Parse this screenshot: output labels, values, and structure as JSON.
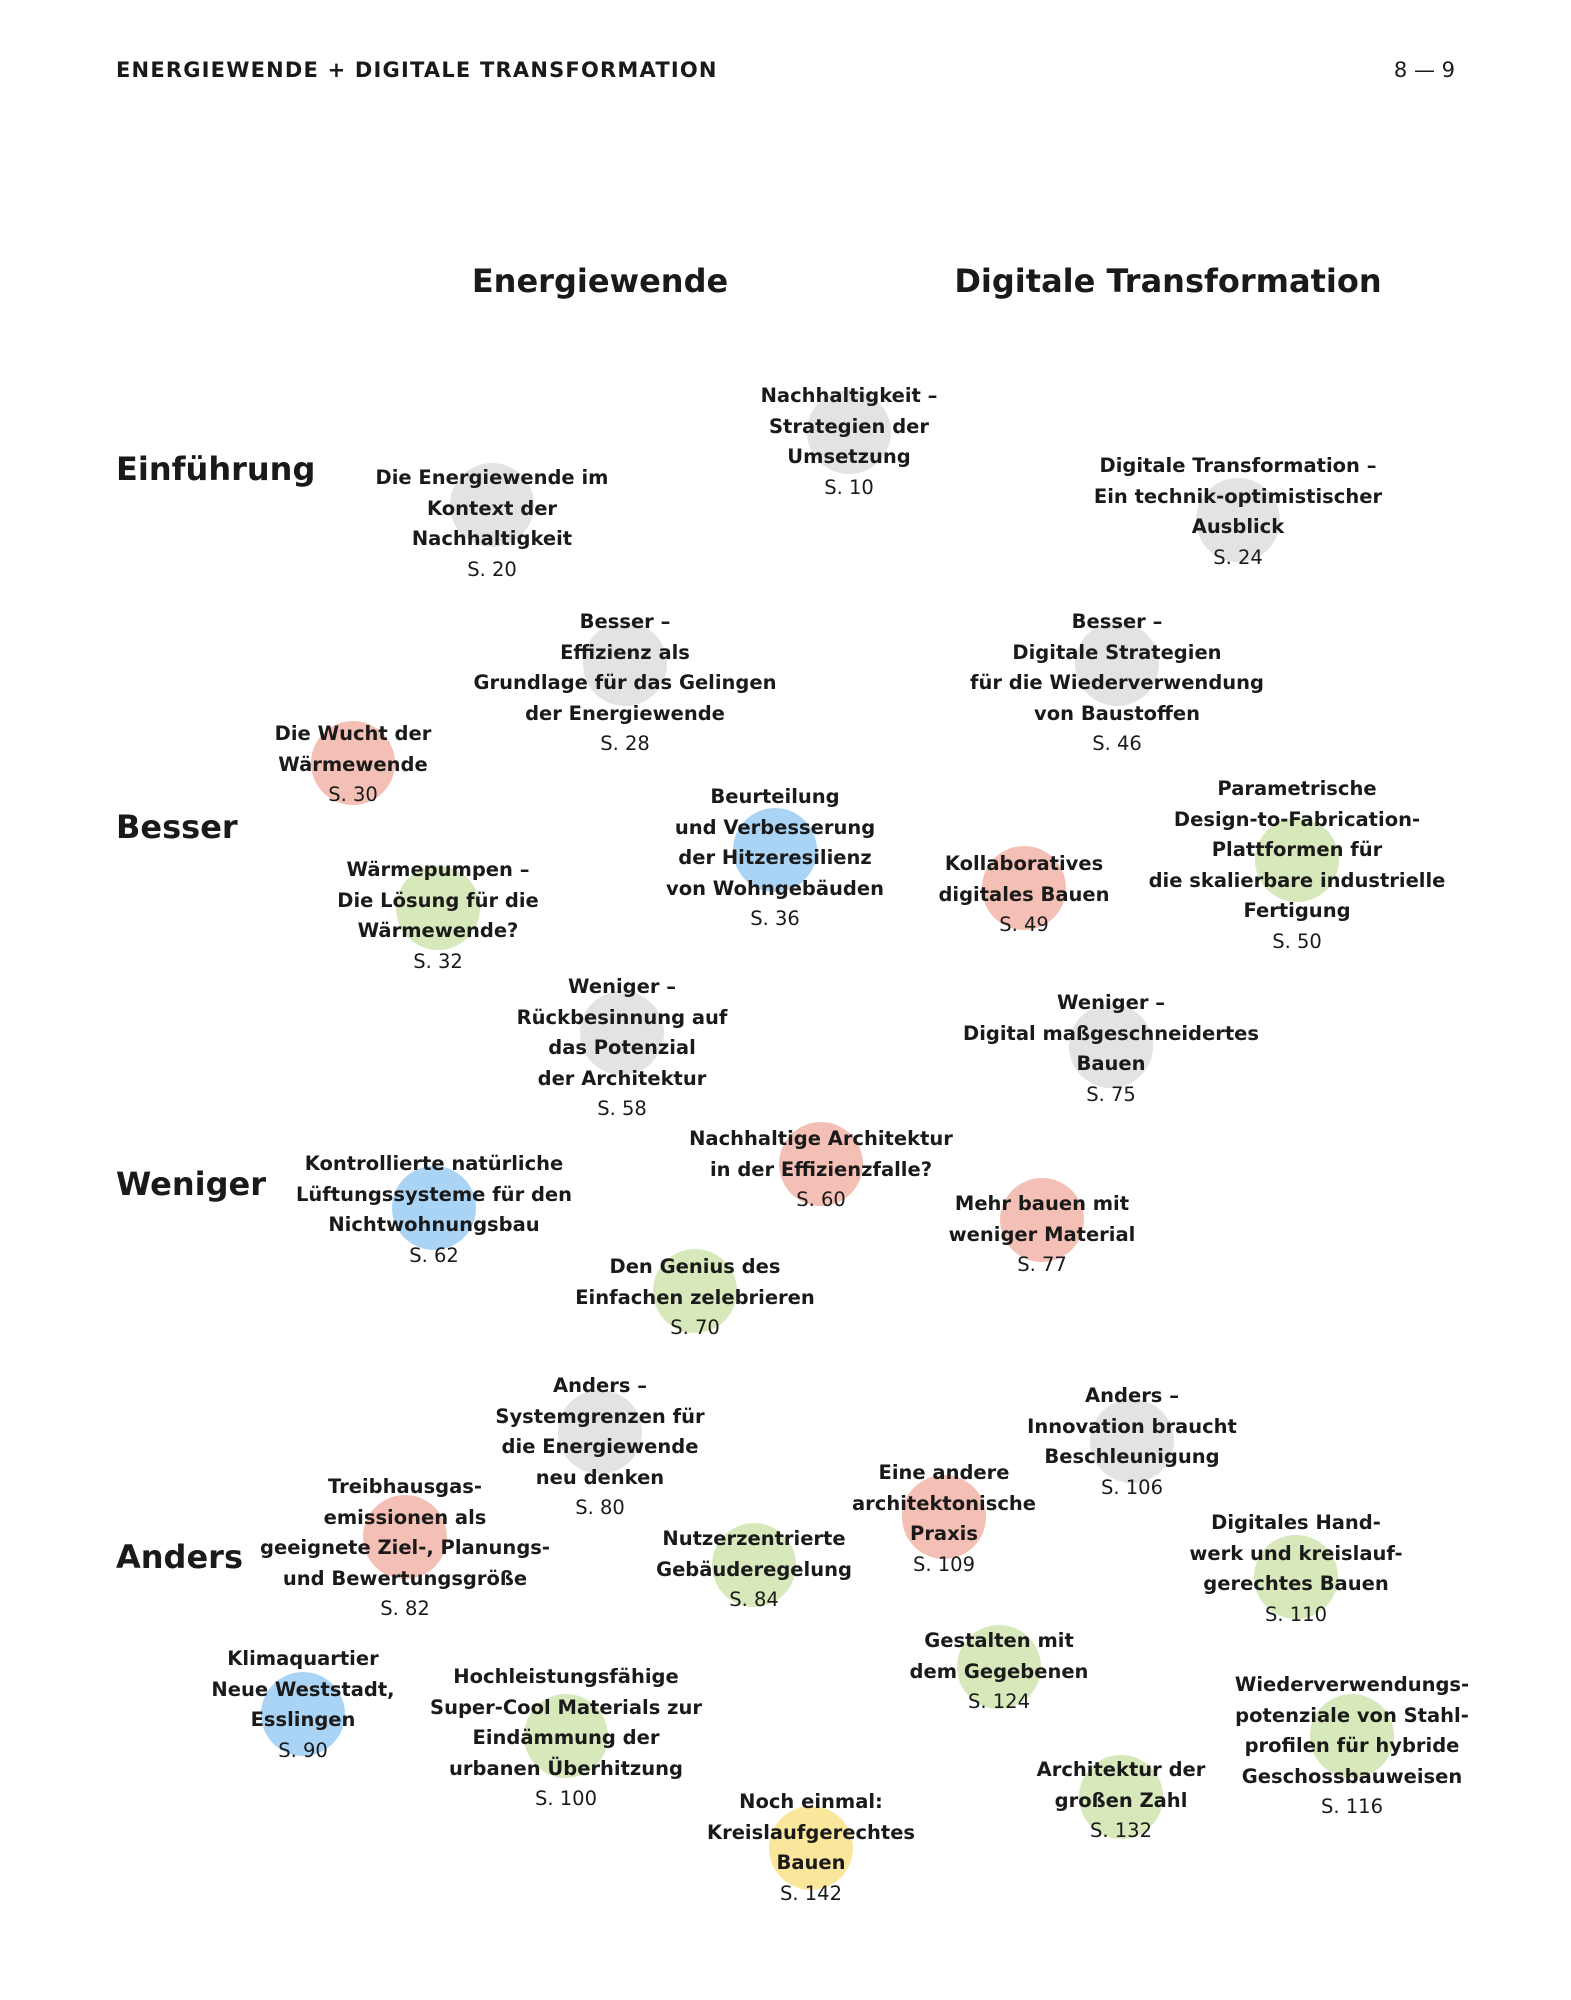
{
  "header": {
    "title": "ENERGIEWENDE + DIGITALE TRANSFORMATION",
    "page": "8 — 9"
  },
  "columns": [
    "Energiewende",
    "Digitale Transformation"
  ],
  "rows": [
    "Einführung",
    "Besser",
    "Weniger",
    "Anders"
  ],
  "colors": {
    "grey": "#e3e3e3",
    "red": "#f4c0b6",
    "blue": "#a9d4f5",
    "green": "#d7e8bb",
    "yellow": "#fbe79b"
  },
  "topics": [
    {
      "lines": [
        "Nachhaltigkeit –",
        "Strategien der",
        "Umsetzung"
      ],
      "page": "S. 10",
      "color": "grey"
    },
    {
      "lines": [
        "Die Energiewende im",
        "Kontext der",
        "Nachhaltigkeit"
      ],
      "page": "S. 20",
      "color": "grey"
    },
    {
      "lines": [
        "Digitale Transformation –",
        "Ein technik-optimistischer",
        "Ausblick"
      ],
      "page": "S. 24",
      "color": "grey"
    },
    {
      "lines": [
        "Besser –",
        "Effizienz als",
        "Grundlage für das Gelingen",
        "der Energiewende"
      ],
      "page": "S. 28",
      "color": "grey"
    },
    {
      "lines": [
        "Besser –",
        "Digitale Strategien",
        "für die Wiederverwendung",
        "von Baustoffen"
      ],
      "page": "S. 46",
      "color": "grey"
    },
    {
      "lines": [
        "Die Wucht der",
        "Wärmewende"
      ],
      "page": "S. 30",
      "color": "red"
    },
    {
      "lines": [
        "Beurteilung",
        "und Verbesserung",
        "der Hitzeresilienz",
        "von Wohngebäuden"
      ],
      "page": "S. 36",
      "color": "blue"
    },
    {
      "lines": [
        "Parametrische",
        "Design-to-Fabrication-",
        "Plattformen für",
        "die skalierbare industrielle",
        "Fertigung"
      ],
      "page": "S. 50",
      "color": "green"
    },
    {
      "lines": [
        "Kollaboratives",
        "digitales Bauen"
      ],
      "page": "S. 49",
      "color": "red"
    },
    {
      "lines": [
        "Wärmepumpen –",
        "Die Lösung für die",
        "Wärmewende?"
      ],
      "page": "S. 32",
      "color": "green"
    },
    {
      "lines": [
        "Weniger –",
        "Rückbesinnung auf",
        "das Potenzial",
        "der Architektur"
      ],
      "page": "S. 58",
      "color": "grey"
    },
    {
      "lines": [
        "Weniger –",
        "Digital maßgeschneidertes",
        "Bauen"
      ],
      "page": "S. 75",
      "color": "grey"
    },
    {
      "lines": [
        "Nachhaltige Architektur",
        "in der Effizienzfalle?"
      ],
      "page": "S. 60",
      "color": "red"
    },
    {
      "lines": [
        "Kontrollierte natürliche",
        "Lüftungssysteme für den",
        "Nichtwohnungsbau"
      ],
      "page": "S. 62",
      "color": "blue"
    },
    {
      "lines": [
        "Mehr bauen mit",
        "weniger Material"
      ],
      "page": "S. 77",
      "color": "red"
    },
    {
      "lines": [
        "Den Genius des",
        "Einfachen zelebrieren"
      ],
      "page": "S. 70",
      "color": "green"
    },
    {
      "lines": [
        "Anders –",
        "Systemgrenzen für",
        "die Energiewende",
        "neu denken"
      ],
      "page": "S. 80",
      "color": "grey"
    },
    {
      "lines": [
        "Anders –",
        "Innovation braucht",
        "Beschleunigung"
      ],
      "page": "S. 106",
      "color": "grey"
    },
    {
      "lines": [
        "Eine andere",
        "architektonische",
        "Praxis"
      ],
      "page": "S. 109",
      "color": "red"
    },
    {
      "lines": [
        "Treibhausgas-",
        "emissionen als",
        "geeignete Ziel-, Planungs-",
        "und Bewertungsgröße"
      ],
      "page": "S. 82",
      "color": "red"
    },
    {
      "lines": [
        "Nutzerzentrierte",
        "Gebäuderegelung"
      ],
      "page": "S. 84",
      "color": "green"
    },
    {
      "lines": [
        "Digitales Hand-",
        "werk und kreislauf-",
        "gerechtes Bauen"
      ],
      "page": "S. 110",
      "color": "green"
    },
    {
      "lines": [
        "Gestalten mit",
        "dem Gegebenen"
      ],
      "page": "S. 124",
      "color": "green"
    },
    {
      "lines": [
        "Klimaquartier",
        "Neue Weststadt,",
        "Esslingen"
      ],
      "page": "S. 90",
      "color": "blue"
    },
    {
      "lines": [
        "Hochleistungsfähige",
        "Super-Cool Materials zur",
        "Eindämmung der",
        "urbanen Überhitzung"
      ],
      "page": "S. 100",
      "color": "green"
    },
    {
      "lines": [
        "Wiederverwendungs-",
        "potenziale von Stahl-",
        "profilen für hybride",
        "Geschossbauweisen"
      ],
      "page": "S. 116",
      "color": "green"
    },
    {
      "lines": [
        "Architektur der",
        "großen Zahl"
      ],
      "page": "S. 132",
      "color": "green"
    },
    {
      "lines": [
        "Noch einmal:",
        "Kreislaufgerechtes",
        "Bauen"
      ],
      "page": "S. 142",
      "color": "yellow"
    }
  ]
}
